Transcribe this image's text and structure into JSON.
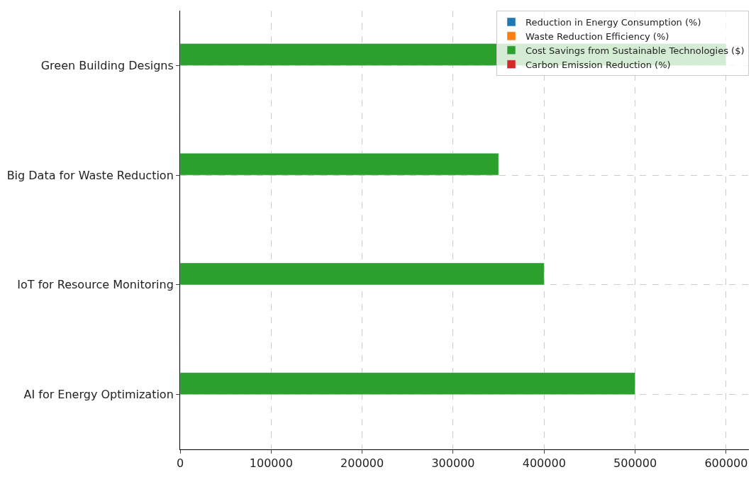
{
  "chart_data": {
    "type": "bar",
    "orientation": "horizontal",
    "categories": [
      "Green Building Designs",
      "Big Data for Waste Reduction",
      "IoT for Resource Monitoring",
      "AI for Energy Optimization"
    ],
    "series": [
      {
        "name": "Reduction in Energy Consumption (%)",
        "color": "#1f77b4",
        "values": [
          0,
          0,
          0,
          0
        ]
      },
      {
        "name": "Waste Reduction Efficiency (%)",
        "color": "#ff7f0e",
        "values": [
          0,
          0,
          0,
          0
        ]
      },
      {
        "name": "Cost Savings from Sustainable Technologies ($)",
        "color": "#2ca02c",
        "values": [
          600000,
          350000,
          400000,
          500000
        ]
      },
      {
        "name": "Carbon Emission Reduction (%)",
        "color": "#d62728",
        "values": [
          0,
          0,
          0,
          0
        ]
      }
    ],
    "xlim": [
      0,
      625000
    ],
    "xticks": [
      0,
      100000,
      200000,
      300000,
      400000,
      500000,
      600000
    ],
    "grid": true,
    "line_style": "dashed",
    "legend": "top right"
  }
}
